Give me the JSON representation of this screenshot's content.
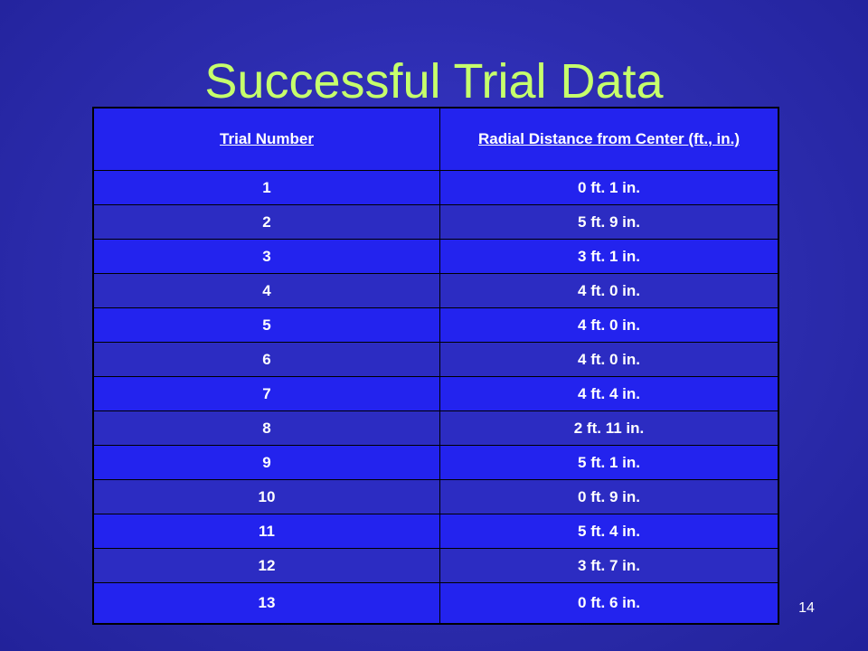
{
  "slide": {
    "title": "Successful Trial Data",
    "page_number": "14"
  },
  "table": {
    "headers": [
      "Trial Number",
      "Radial Distance from Center (ft., in.)"
    ],
    "rows": [
      [
        "1",
        "0 ft. 1 in."
      ],
      [
        "2",
        "5 ft. 9 in."
      ],
      [
        "3",
        "3 ft. 1 in."
      ],
      [
        "4",
        "4 ft. 0 in."
      ],
      [
        "5",
        "4 ft. 0 in."
      ],
      [
        "6",
        "4 ft. 0 in."
      ],
      [
        "7",
        "4 ft. 4 in."
      ],
      [
        "8",
        "2 ft. 11 in."
      ],
      [
        "9",
        "5 ft. 1 in."
      ],
      [
        "10",
        "0 ft. 9 in."
      ],
      [
        "11",
        "5 ft. 4 in."
      ],
      [
        "12",
        "3 ft. 7 in."
      ],
      [
        "13",
        "0 ft. 6 in."
      ]
    ]
  },
  "colors": {
    "background": "#2c2cae",
    "title": "#c6ff6c",
    "row_light": "#2323ee",
    "row_dark": "#2c2cc2",
    "text": "#ffffff"
  }
}
